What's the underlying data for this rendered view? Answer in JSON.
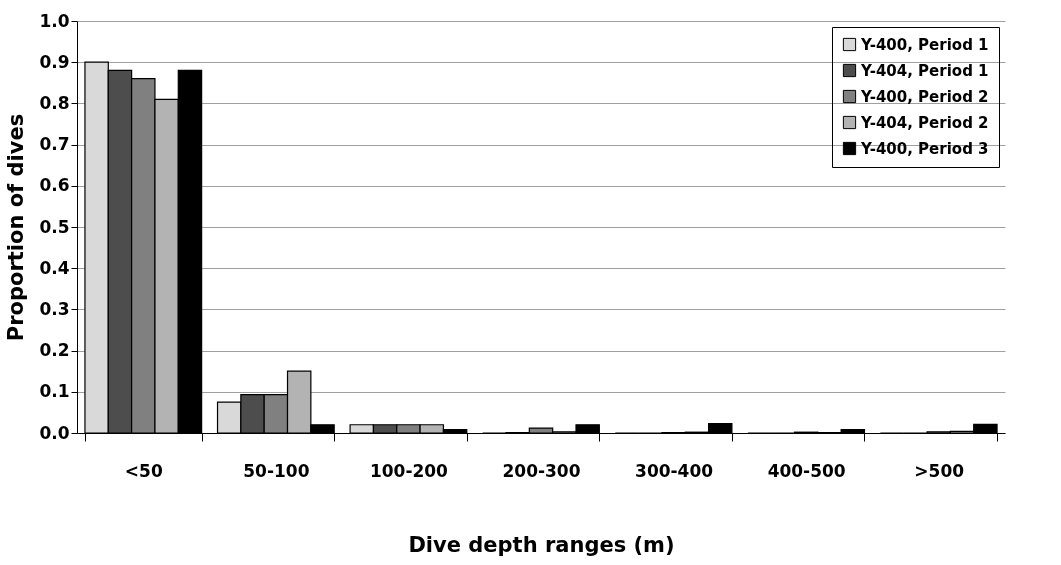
{
  "chart_data": {
    "type": "bar",
    "xlabel": "Dive depth ranges (m)",
    "ylabel": "Proportion of dives",
    "categories": [
      "<50",
      "50-100",
      "100-200",
      "200-300",
      "300-400",
      "400-500",
      ">500"
    ],
    "series": [
      {
        "name": "Y-400, Period 1",
        "color": "#d9d9d9",
        "values": [
          0.9,
          0.075,
          0.02,
          0,
          0,
          0,
          0
        ]
      },
      {
        "name": "Y-404, Period 1",
        "color": "#4d4d4d",
        "values": [
          0.88,
          0.093,
          0.02,
          0.001,
          0,
          0,
          0
        ]
      },
      {
        "name": "Y-400, Period 2",
        "color": "#808080",
        "values": [
          0.86,
          0.093,
          0.02,
          0.012,
          0.001,
          0.002,
          0.003
        ]
      },
      {
        "name": "Y-404, Period 2",
        "color": "#b3b3b3",
        "values": [
          0.81,
          0.15,
          0.02,
          0.003,
          0.002,
          0.001,
          0.004
        ]
      },
      {
        "name": "Y-400, Period 3",
        "color": "#000000",
        "values": [
          0.88,
          0.02,
          0.008,
          0.02,
          0.023,
          0.008,
          0.021
        ]
      }
    ],
    "ylim": [
      0,
      1.0
    ],
    "yticks": [
      {
        "value": 0,
        "label": "0.0"
      },
      {
        "value": 0.1,
        "label": "0.1"
      },
      {
        "value": 0.2,
        "label": "0.2"
      },
      {
        "value": 0.3,
        "label": "0.3"
      },
      {
        "value": 0.4,
        "label": "0.4"
      },
      {
        "value": 0.5,
        "label": "0.5"
      },
      {
        "value": 0.6,
        "label": "0.6"
      },
      {
        "value": 0.7,
        "label": "0.7"
      },
      {
        "value": 0.8,
        "label": "0.8"
      },
      {
        "value": 0.9,
        "label": "0.9"
      },
      {
        "value": 1.0,
        "label": "1.0"
      }
    ],
    "grid": "y",
    "legend": "top right"
  }
}
